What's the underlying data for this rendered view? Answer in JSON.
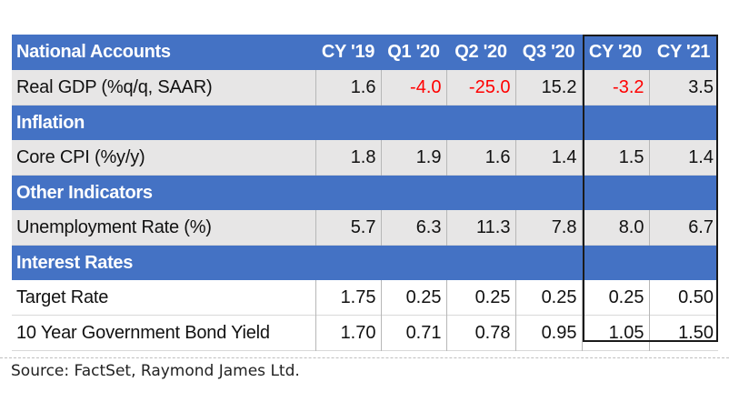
{
  "table": {
    "header": {
      "label": "National Accounts",
      "columns": [
        "CY '19",
        "Q1 '20",
        "Q2 '20",
        "Q3 '20",
        "CY '20",
        "CY '21"
      ]
    },
    "gdp": {
      "label": "Real GDP (%q/q, SAAR)",
      "values": [
        "1.6",
        "-4.0",
        "-25.0",
        "15.2",
        "-3.2",
        "3.5"
      ]
    },
    "inflation_title": "Inflation",
    "cpi": {
      "label": "Core CPI (%y/y)",
      "values": [
        "1.8",
        "1.9",
        "1.6",
        "1.4",
        "1.5",
        "1.4"
      ]
    },
    "other_title": "Other Indicators",
    "unemployment": {
      "label": "Unemployment Rate (%)",
      "values": [
        "5.7",
        "6.3",
        "11.3",
        "7.8",
        "8.0",
        "6.7"
      ]
    },
    "rates_title": "Interest Rates",
    "target": {
      "label": "Target Rate",
      "values": [
        "1.75",
        "0.25",
        "0.25",
        "0.25",
        "0.25",
        "0.50"
      ]
    },
    "bond": {
      "label": "10 Year Government Bond Yield",
      "values": [
        "1.70",
        "0.71",
        "0.78",
        "0.95",
        "1.05",
        "1.50"
      ]
    }
  },
  "colors": {
    "header": "#4472c4",
    "negative": "#ff0000",
    "shade": "#e7e6e6"
  },
  "source": "Source: FactSet, Raymond James Ltd."
}
